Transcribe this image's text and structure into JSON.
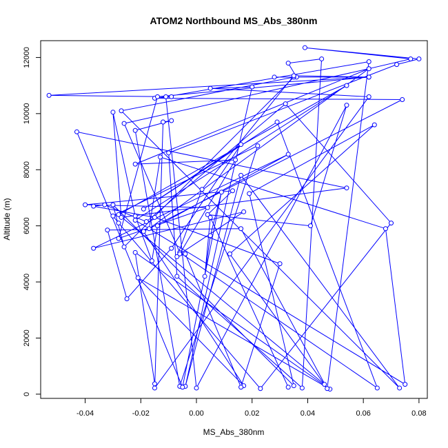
{
  "chart_data": {
    "type": "scatter",
    "title": "ATOM2 Northbound MS_Abs_380nm",
    "xlabel": "MS_Abs_380nm",
    "ylabel": "Altitude (m)",
    "xlim": [
      -0.056,
      0.083
    ],
    "ylim": [
      -150,
      12600
    ],
    "xticks": [
      -0.04,
      -0.02,
      0.0,
      0.02,
      0.04,
      0.06,
      0.08
    ],
    "xtick_labels": [
      "-0.04",
      "-0.02",
      "0.00",
      "0.02",
      "0.04",
      "0.06",
      "0.08"
    ],
    "yticks": [
      0,
      2000,
      4000,
      6000,
      8000,
      10000,
      12000
    ],
    "ytick_labels": [
      "0",
      "2000",
      "4000",
      "6000",
      "8000",
      "10000",
      "12000"
    ],
    "grid": false,
    "connected": true,
    "marker": "open-circle",
    "series_color": "#0000ff",
    "points": [
      [
        -0.015,
        370
      ],
      [
        -0.022,
        5050
      ],
      [
        0.048,
        180
      ],
      [
        -0.021,
        4150
      ],
      [
        0.017,
        300
      ],
      [
        -0.019,
        5800
      ],
      [
        0.074,
        10500
      ],
      [
        -0.015,
        10550
      ],
      [
        -0.009,
        10600
      ],
      [
        -0.053,
        10650
      ],
      [
        0.062,
        11300
      ],
      [
        0.028,
        11300
      ],
      [
        0.036,
        11300
      ],
      [
        0.033,
        11800
      ],
      [
        0.045,
        11950
      ],
      [
        0.038,
        220
      ],
      [
        -0.007,
        4200
      ],
      [
        -0.01,
        8600
      ],
      [
        0.072,
        11750
      ],
      [
        0.08,
        11950
      ],
      [
        0.039,
        12350
      ],
      [
        0.077,
        11950
      ],
      [
        0.062,
        11600
      ],
      [
        -0.017,
        5900
      ],
      [
        -0.013,
        8450
      ],
      [
        0.068,
        5900
      ],
      [
        0.075,
        350
      ],
      [
        -0.022,
        6200
      ],
      [
        0.054,
        11000
      ],
      [
        -0.028,
        6400
      ],
      [
        0.046,
        350
      ],
      [
        0.012,
        5000
      ],
      [
        0.064,
        9600
      ],
      [
        0.019,
        7150
      ],
      [
        0.035,
        300
      ],
      [
        -0.03,
        6750
      ],
      [
        -0.026,
        5250
      ],
      [
        0.035,
        11300
      ],
      [
        -0.027,
        10100
      ],
      [
        0.073,
        220
      ],
      [
        0.016,
        7800
      ],
      [
        -0.004,
        280
      ],
      [
        0.02,
        10950
      ],
      [
        0.005,
        10900
      ],
      [
        0.062,
        10600
      ],
      [
        -0.015,
        220
      ],
      [
        -0.012,
        9700
      ],
      [
        -0.012,
        9700
      ],
      [
        -0.009,
        9750
      ],
      [
        -0.022,
        9400
      ],
      [
        -0.006,
        280
      ],
      [
        0.022,
        8850
      ],
      [
        -0.03,
        6350
      ],
      [
        -0.028,
        6100
      ],
      [
        0.023,
        200
      ],
      [
        0.07,
        6100
      ],
      [
        0.032,
        10350
      ],
      [
        -0.018,
        6150
      ],
      [
        -0.033,
        6750
      ],
      [
        -0.037,
        6700
      ],
      [
        -0.015,
        6300
      ],
      [
        0.03,
        4650
      ],
      [
        0.016,
        250
      ],
      [
        -0.004,
        5000
      ],
      [
        -0.007,
        4900
      ],
      [
        0.002,
        7300
      ],
      [
        0.035,
        11350
      ],
      [
        0.062,
        11300
      ],
      [
        -0.014,
        10600
      ],
      [
        -0.028,
        5550
      ],
      [
        0.004,
        6650
      ],
      [
        -0.04,
        6750
      ],
      [
        0.013,
        7250
      ],
      [
        0.004,
        6400
      ],
      [
        0.041,
        6000
      ],
      [
        0.054,
        10300
      ],
      [
        0.0,
        220
      ],
      [
        -0.011,
        10600
      ],
      [
        0.062,
        11850
      ],
      [
        0.047,
        200
      ],
      [
        0.016,
        5900
      ],
      [
        -0.032,
        5850
      ],
      [
        -0.025,
        3400
      ],
      [
        -0.009,
        5200
      ],
      [
        0.016,
        8900
      ],
      [
        -0.019,
        6600
      ],
      [
        0.029,
        9700
      ],
      [
        0.065,
        220
      ],
      [
        -0.006,
        5050
      ],
      [
        -0.026,
        9650
      ],
      [
        0.062,
        11600
      ],
      [
        -0.022,
        8200
      ],
      [
        0.014,
        8350
      ],
      [
        -0.006,
        5000
      ],
      [
        0.017,
        6500
      ],
      [
        -0.037,
        5200
      ],
      [
        0.033,
        8550
      ],
      [
        -0.014,
        6000
      ],
      [
        -0.016,
        4750
      ],
      [
        -0.022,
        6350
      ],
      [
        -0.03,
        10050
      ],
      [
        -0.027,
        6300
      ],
      [
        0.054,
        7350
      ],
      [
        -0.043,
        9350
      ],
      [
        -0.005,
        250
      ],
      [
        0.009,
        7200
      ],
      [
        0.005,
        5650
      ],
      [
        0.003,
        4200
      ],
      [
        0.005,
        6300
      ],
      [
        0.033,
        250
      ]
    ]
  }
}
